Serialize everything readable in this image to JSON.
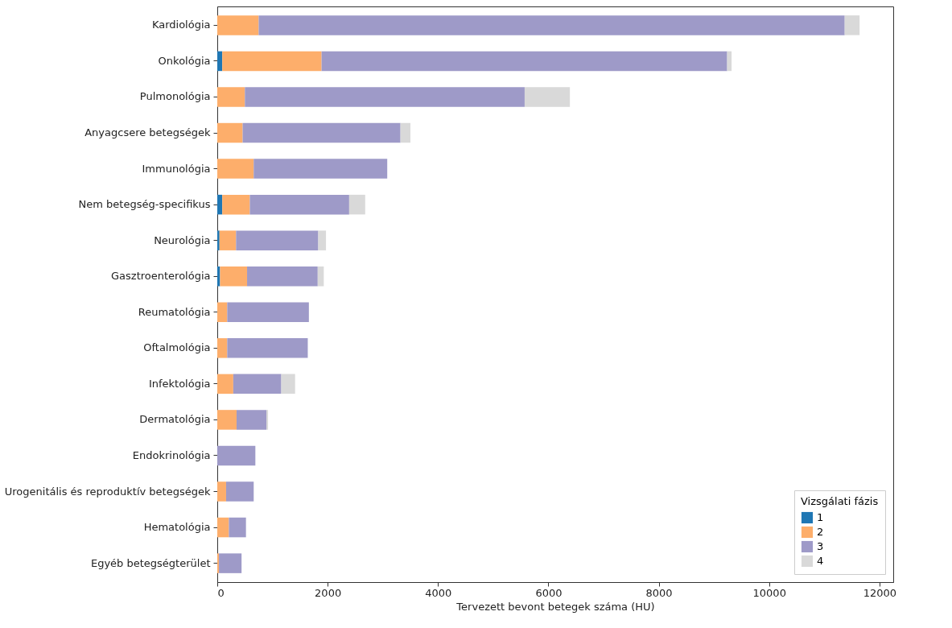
{
  "chart_data": {
    "type": "bar",
    "orientation": "horizontal",
    "stacked": true,
    "xlabel": "Tervezett bevont betegek száma (HU)",
    "legend_title": "Vizsgálati fázis",
    "legend": "bottom right",
    "categories": [
      "Kardiológia",
      "Onkológia",
      "Pulmonológia",
      "Anyagcsere betegségek",
      "Immunológia",
      "Nem betegség-specifikus",
      "Neurológia",
      "Gasztroenterológia",
      "Reumatológia",
      "Oftalmológia",
      "Infektológia",
      "Dermatológia",
      "Endokrinológia",
      "Urogenitális és reproduktív betegségek",
      "Hematológia",
      "Egyéb betegségterület"
    ],
    "series": [
      {
        "name": "1",
        "color": "#1f77b4",
        "values": [
          0,
          90,
          0,
          0,
          0,
          90,
          40,
          50,
          0,
          0,
          0,
          0,
          0,
          0,
          0,
          0
        ]
      },
      {
        "name": "2",
        "color": "#fdae6b",
        "values": [
          750,
          1800,
          500,
          460,
          660,
          500,
          300,
          490,
          180,
          180,
          290,
          350,
          null,
          160,
          210,
          30
        ]
      },
      {
        "name": "3",
        "color": "#9e9ac8",
        "values": [
          10620,
          7350,
          5070,
          2860,
          2420,
          1800,
          1490,
          1280,
          1480,
          1460,
          870,
          540,
          690,
          500,
          310,
          410
        ]
      },
      {
        "name": "4",
        "color": "#d9d9d9",
        "values": [
          270,
          80,
          820,
          180,
          null,
          290,
          140,
          110,
          0,
          0,
          250,
          30,
          0,
          0,
          0,
          0
        ]
      }
    ],
    "xlim": [
      0,
      12250
    ],
    "xticks": [
      0,
      2000,
      4000,
      6000,
      8000,
      10000,
      12000
    ],
    "grid": false
  }
}
